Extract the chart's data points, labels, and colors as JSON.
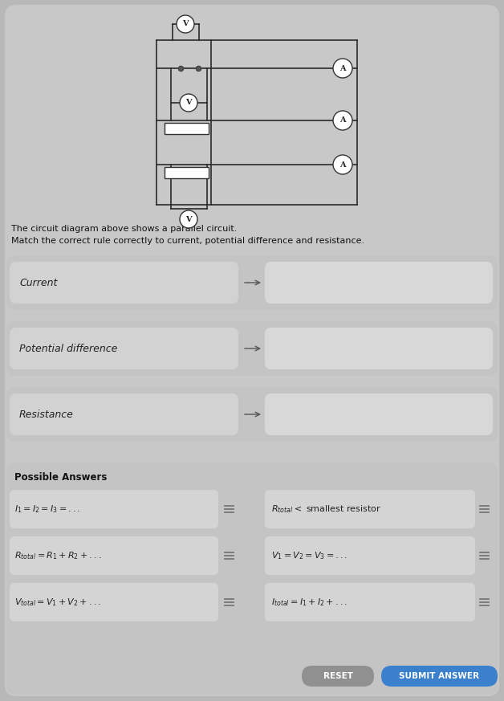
{
  "bg_color": "#b8b8b8",
  "card_color": "#c8c8c8",
  "row_outer_color": "#c0c0c0",
  "row_left_color": "#d0d0d0",
  "row_right_color": "#d8d8d8",
  "ans_box_color": "#d8d8d8",
  "ans_section_color": "#c4c4c4",
  "title_text1": "The circuit diagram above shows a parallel circuit.",
  "title_text2": "Match the correct rule correctly to current, potential difference and resistance.",
  "row_labels": [
    "Current",
    "Potential difference",
    "Resistance"
  ],
  "possible_answers_title": "Possible Answers",
  "left_answers": [
    "$I_1 = I_2 = I_3 = ...$",
    "$R_{total} = R_1 + R_2 + ...$",
    "$V_{total} = V_1 + V_2 + ...$"
  ],
  "right_answers": [
    "$R_{total} < $ smallest resistor",
    "$V_1 = V_2 = V_3 = ...$",
    "$I_{total} = I_1 + I_2 + ...$"
  ],
  "button1_text": "RESET",
  "button2_text": "SUBMIT ANSWER",
  "button1_color": "#909090",
  "button2_color": "#3a80cc"
}
